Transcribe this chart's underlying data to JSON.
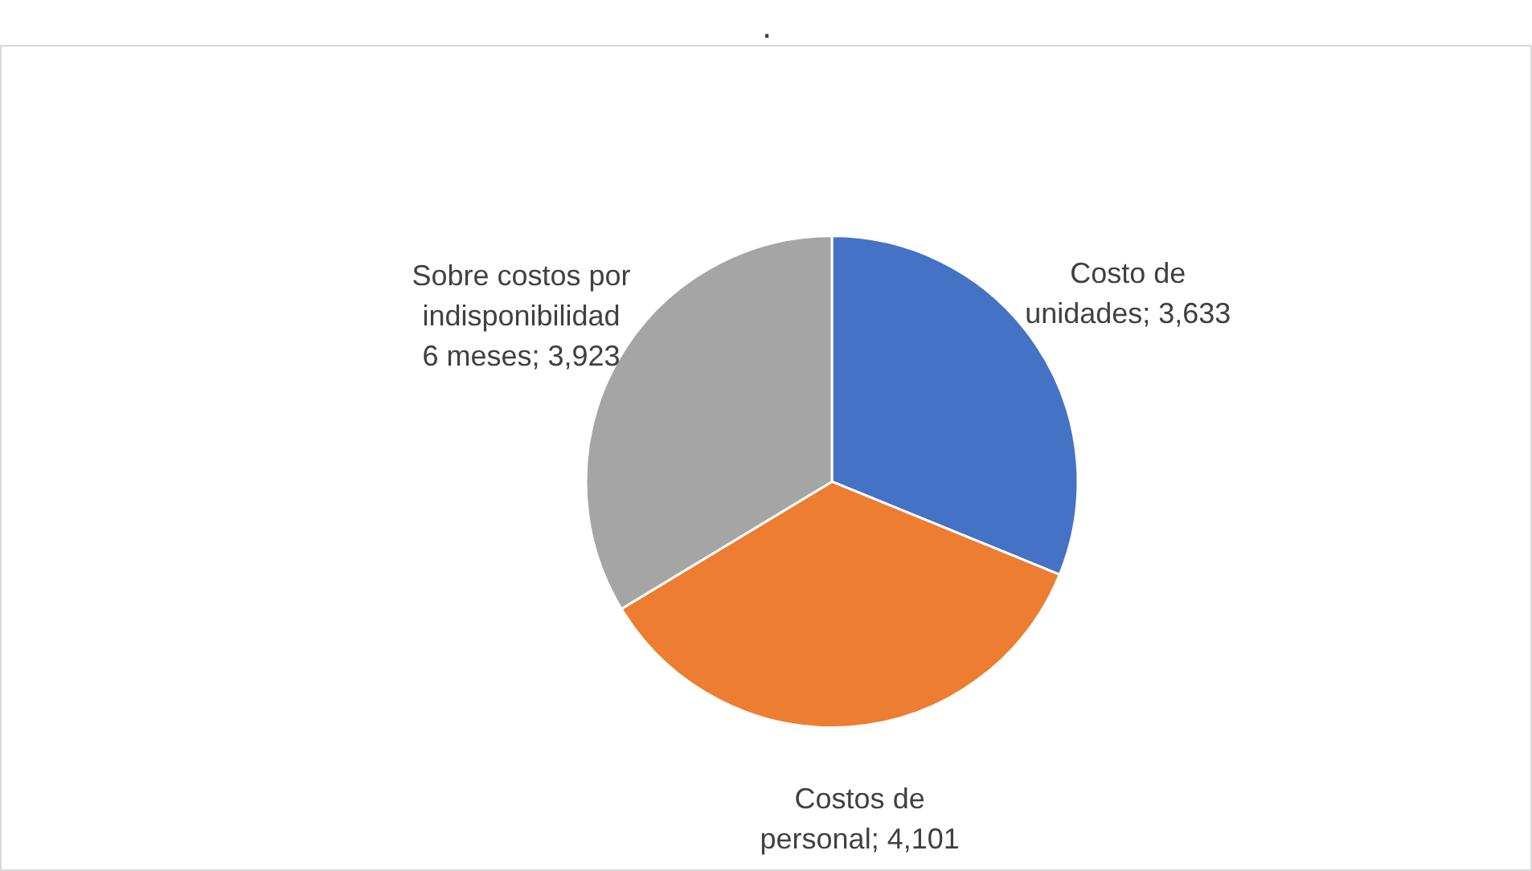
{
  "chart_data": {
    "type": "pie",
    "title": ".",
    "categories": [
      "Costo de unidades",
      "Costos de personal",
      "Sobre costos por indisponibilidad 6 meses"
    ],
    "values": [
      3633,
      4101,
      3923
    ],
    "value_labels": [
      "3,633",
      "4,101",
      "3,923"
    ],
    "colors": [
      "#4472c4",
      "#ed7d31",
      "#a5a5a5"
    ]
  }
}
